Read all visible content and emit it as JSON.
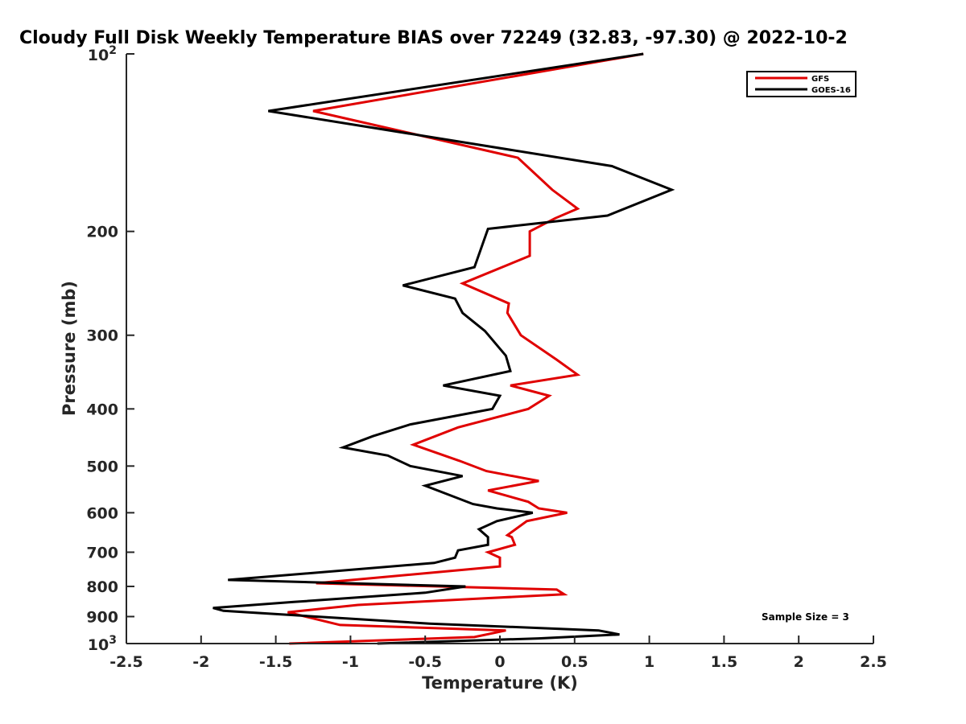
{
  "chart_data": {
    "type": "line",
    "title": "Cloudy Full Disk Weekly Temperature BIAS over 72249 (32.83, -97.30) @ 2022-10-2",
    "xlabel": "Temperature (K)",
    "ylabel": "Pressure (mb)",
    "xlim": [
      -2.5,
      2.5
    ],
    "ylim": [
      100,
      1000
    ],
    "y_scale": "log",
    "y_reversed": true,
    "x_ticks": [
      "-2.5",
      "-2",
      "-1.5",
      "-1",
      "-0.5",
      "0",
      "0.5",
      "1",
      "1.5",
      "2",
      "2.5"
    ],
    "x_tick_values": [
      -2.5,
      -2,
      -1.5,
      -1,
      -0.5,
      0,
      0.5,
      1,
      1.5,
      2,
      2.5
    ],
    "y_tick_values": [
      100,
      200,
      300,
      400,
      500,
      600,
      700,
      800,
      900,
      1000
    ],
    "y_ticks": [
      "",
      "200",
      "300",
      "400",
      "500",
      "600",
      "700",
      "800",
      "900",
      ""
    ],
    "y_top_label": {
      "base": "10",
      "exp": "2"
    },
    "y_bottom_label": {
      "base": "10",
      "exp": "3"
    },
    "grid": false,
    "legend_position": "top-right",
    "annotation": "Sample Size = 3",
    "series": [
      {
        "name": "GFS",
        "color": "#e00000",
        "points": [
          [
            0.96,
            100
          ],
          [
            -1.25,
            125
          ],
          [
            0.12,
            150
          ],
          [
            0.35,
            170
          ],
          [
            0.52,
            183
          ],
          [
            0.37,
            190
          ],
          [
            0.2,
            200
          ],
          [
            0.2,
            220
          ],
          [
            -0.25,
            245
          ],
          [
            0.06,
            265
          ],
          [
            0.05,
            275
          ],
          [
            0.14,
            300
          ],
          [
            0.38,
            330
          ],
          [
            0.52,
            350
          ],
          [
            0.07,
            365
          ],
          [
            0.33,
            380
          ],
          [
            0.19,
            400
          ],
          [
            -0.28,
            430
          ],
          [
            -0.58,
            460
          ],
          [
            -0.27,
            490
          ],
          [
            -0.09,
            510
          ],
          [
            0.26,
            530
          ],
          [
            -0.08,
            550
          ],
          [
            0.19,
            575
          ],
          [
            0.26,
            590
          ],
          [
            0.45,
            600
          ],
          [
            0.18,
            620
          ],
          [
            0.05,
            655
          ],
          [
            0.08,
            660
          ],
          [
            0.1,
            680
          ],
          [
            -0.08,
            700
          ],
          [
            0.0,
            715
          ],
          [
            0.0,
            740
          ],
          [
            -1.23,
            790
          ],
          [
            0.38,
            810
          ],
          [
            0.43,
            825
          ],
          [
            -0.18,
            840
          ],
          [
            -0.95,
            860
          ],
          [
            -1.42,
            885
          ],
          [
            -1.07,
            930
          ],
          [
            0.04,
            950
          ],
          [
            -0.17,
            975
          ],
          [
            -1.41,
            1000
          ]
        ]
      },
      {
        "name": "GOES-16",
        "color": "#000000",
        "points": [
          [
            0.96,
            100
          ],
          [
            -1.55,
            125
          ],
          [
            0.75,
            155
          ],
          [
            1.15,
            170
          ],
          [
            0.72,
            188
          ],
          [
            -0.08,
            198
          ],
          [
            -0.17,
            230
          ],
          [
            -0.65,
            247
          ],
          [
            -0.3,
            260
          ],
          [
            -0.25,
            275
          ],
          [
            -0.1,
            295
          ],
          [
            0.04,
            325
          ],
          [
            0.07,
            345
          ],
          [
            -0.38,
            365
          ],
          [
            0.0,
            380
          ],
          [
            -0.05,
            400
          ],
          [
            -0.6,
            425
          ],
          [
            -0.85,
            445
          ],
          [
            -1.05,
            465
          ],
          [
            -0.75,
            480
          ],
          [
            -0.6,
            500
          ],
          [
            -0.25,
            520
          ],
          [
            -0.5,
            540
          ],
          [
            -0.18,
            580
          ],
          [
            -0.02,
            590
          ],
          [
            0.22,
            600
          ],
          [
            -0.02,
            620
          ],
          [
            -0.14,
            640
          ],
          [
            -0.08,
            660
          ],
          [
            -0.08,
            680
          ],
          [
            -0.28,
            695
          ],
          [
            -0.3,
            715
          ],
          [
            -0.44,
            730
          ],
          [
            -1.82,
            780
          ],
          [
            -0.23,
            800
          ],
          [
            -0.5,
            820
          ],
          [
            -1.38,
            850
          ],
          [
            -1.92,
            870
          ],
          [
            -1.85,
            880
          ],
          [
            -0.47,
            925
          ],
          [
            0.66,
            950
          ],
          [
            0.8,
            965
          ],
          [
            0.26,
            980
          ],
          [
            -0.82,
            1000
          ]
        ]
      }
    ]
  }
}
